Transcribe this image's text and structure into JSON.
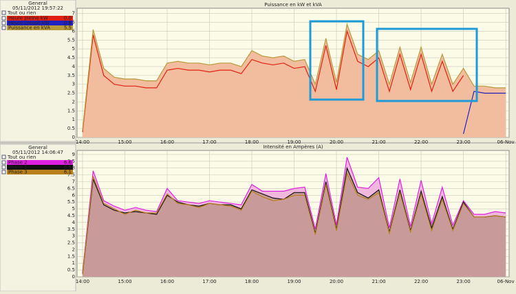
{
  "chart_data": [
    {
      "type": "line",
      "title": "Puissance en kW et kVA",
      "legend_title": "General",
      "timestamp": "05/11/2012 19:57:22",
      "status": "Tout ou rien",
      "x": [
        14,
        14.25,
        14.5,
        14.75,
        15,
        15.25,
        15.5,
        15.75,
        16,
        16.25,
        16.5,
        16.75,
        17,
        17.25,
        17.5,
        17.75,
        18,
        18.25,
        18.5,
        18.75,
        19,
        19.25,
        19.5,
        19.75,
        20,
        20.25,
        20.5,
        20.75,
        21,
        21.25,
        21.5,
        21.75,
        22,
        22.25,
        22.5,
        22.75,
        23,
        23.25,
        23.5,
        23.75,
        24
      ],
      "series": [
        {
          "name": "Heure pleine kW",
          "current": "0.0",
          "color": "#e02010",
          "area_color": null,
          "values": [
            0.3,
            5.8,
            3.5,
            3.0,
            2.9,
            2.9,
            2.8,
            2.8,
            3.8,
            3.9,
            3.8,
            3.8,
            3.7,
            3.8,
            3.8,
            3.6,
            4.4,
            4.2,
            4.1,
            4.2,
            3.9,
            4.0,
            2.6,
            5.2,
            2.7,
            6.0,
            4.3,
            4.0,
            4.5,
            2.6,
            4.7,
            2.7,
            4.7,
            2.6,
            4.3,
            2.6,
            3.5,
            null,
            null,
            null,
            null
          ]
        },
        {
          "name": "Heure creuse kW",
          "current": "0.6",
          "color": "#2020c0",
          "area_color": "#b8b8cc",
          "values": [
            null,
            null,
            null,
            null,
            null,
            null,
            null,
            null,
            null,
            null,
            null,
            null,
            null,
            null,
            null,
            null,
            null,
            null,
            null,
            null,
            null,
            null,
            null,
            null,
            null,
            null,
            null,
            null,
            null,
            null,
            null,
            null,
            null,
            null,
            null,
            null,
            0.2,
            2.6,
            2.5,
            2.5,
            2.5
          ]
        },
        {
          "name": "Puissance en kVA",
          "current": "5.5",
          "color": "#b89a3a",
          "area_color": "#f2bd9e",
          "values": [
            0.4,
            6.1,
            3.9,
            3.4,
            3.3,
            3.3,
            3.2,
            3.2,
            4.2,
            4.3,
            4.2,
            4.2,
            4.1,
            4.2,
            4.2,
            4.0,
            4.9,
            4.6,
            4.5,
            4.6,
            4.3,
            4.4,
            3.0,
            5.6,
            3.1,
            6.4,
            4.7,
            4.4,
            4.9,
            3.0,
            5.1,
            3.1,
            5.1,
            3.0,
            4.7,
            3.0,
            3.9,
            2.9,
            2.9,
            2.8,
            2.8
          ]
        }
      ],
      "xlim": [
        13.87,
        24.08
      ],
      "xticks": [
        {
          "value": 14,
          "label": "14:00"
        },
        {
          "value": 15,
          "label": "15:00"
        },
        {
          "value": 16,
          "label": "16:00"
        },
        {
          "value": 17,
          "label": "17:00"
        },
        {
          "value": 18,
          "label": "18:00"
        },
        {
          "value": 19,
          "label": "19:00"
        },
        {
          "value": 20,
          "label": "20:00"
        },
        {
          "value": 21,
          "label": "21:00"
        },
        {
          "value": 22,
          "label": "22:00"
        },
        {
          "value": 23,
          "label": "23:00"
        },
        {
          "value": 24,
          "label": "06-Nov"
        }
      ],
      "ylim": [
        0,
        7.3
      ],
      "yticks": [
        0,
        0.5,
        1,
        1.5,
        2,
        2.5,
        3,
        3.5,
        4,
        4.5,
        5,
        5.5,
        6,
        6.5,
        7
      ],
      "grid": true
    },
    {
      "type": "line",
      "title": "Intensité en Ampères (A)",
      "legend_title": "General",
      "timestamp": "05/11/2012 14:06:47",
      "status": "Tout ou rien",
      "x": [
        14,
        14.25,
        14.5,
        14.75,
        15,
        15.25,
        15.5,
        15.75,
        16,
        16.25,
        16.5,
        16.75,
        17,
        17.25,
        17.5,
        17.75,
        18,
        18.25,
        18.5,
        18.75,
        19,
        19.25,
        19.5,
        19.75,
        20,
        20.25,
        20.5,
        20.75,
        21,
        21.25,
        21.5,
        21.75,
        22,
        22.25,
        22.5,
        22.75,
        23,
        23.25,
        23.5,
        23.75,
        24
      ],
      "series": [
        {
          "name": "Phase 2",
          "current": "6.6",
          "color": "#e020e0",
          "area_color": "#f0b8dc",
          "values": [
            0.3,
            7.8,
            5.6,
            5.2,
            4.9,
            5.1,
            4.9,
            4.8,
            6.5,
            5.6,
            5.5,
            5.4,
            5.6,
            5.5,
            5.4,
            5.3,
            6.8,
            6.3,
            6.3,
            6.3,
            6.5,
            6.6,
            3.5,
            7.6,
            3.8,
            8.8,
            6.6,
            6.5,
            7.3,
            3.6,
            7.2,
            3.7,
            7.1,
            3.9,
            6.6,
            3.8,
            5.6,
            4.6,
            4.6,
            4.8,
            4.7
          ]
        },
        {
          "name": "Phase 1",
          "current": "6.6",
          "color": "#101010",
          "area_color": "#c89a9a",
          "values": [
            0.2,
            7.2,
            5.3,
            4.9,
            4.7,
            4.8,
            4.7,
            4.6,
            6.0,
            5.5,
            5.3,
            5.2,
            5.4,
            5.3,
            5.3,
            5.0,
            6.4,
            6.1,
            5.8,
            5.7,
            6.2,
            6.2,
            3.2,
            7.0,
            3.5,
            8.0,
            6.2,
            5.8,
            6.4,
            3.3,
            6.4,
            3.4,
            6.3,
            3.6,
            5.9,
            3.5,
            5.5,
            4.4,
            4.4,
            4.5,
            4.4
          ]
        },
        {
          "name": "Phase 3",
          "current": "6.1",
          "color": "#b8801a",
          "area_color": null,
          "values": [
            0.2,
            7.4,
            5.4,
            5.0,
            4.6,
            4.9,
            4.7,
            4.7,
            6.1,
            5.4,
            5.3,
            5.1,
            5.4,
            5.3,
            5.2,
            4.9,
            6.3,
            5.9,
            5.6,
            5.7,
            6.0,
            6.0,
            3.1,
            6.8,
            3.4,
            7.6,
            6.0,
            5.7,
            6.2,
            3.2,
            6.2,
            3.3,
            6.1,
            3.4,
            5.7,
            3.4,
            5.4,
            4.4,
            4.4,
            4.5,
            4.4
          ]
        }
      ],
      "xlim": [
        13.87,
        24.08
      ],
      "xticks": [
        {
          "value": 14,
          "label": "14:00"
        },
        {
          "value": 15,
          "label": "15:00"
        },
        {
          "value": 16,
          "label": "16:00"
        },
        {
          "value": 17,
          "label": "17:00"
        },
        {
          "value": 18,
          "label": "18:00"
        },
        {
          "value": 19,
          "label": "19:00"
        },
        {
          "value": 20,
          "label": "20:00"
        },
        {
          "value": 21,
          "label": "21:00"
        },
        {
          "value": 22,
          "label": "22:00"
        },
        {
          "value": 23,
          "label": "23:00"
        },
        {
          "value": 24,
          "label": "06-Nov"
        }
      ],
      "ylim": [
        0,
        9.3
      ],
      "yticks": [
        0,
        0.5,
        1,
        1.5,
        2,
        2.5,
        3,
        3.5,
        4,
        4.5,
        5,
        5.5,
        6,
        6.5,
        7,
        7.5,
        8,
        8.5,
        9
      ],
      "grid": true
    }
  ]
}
